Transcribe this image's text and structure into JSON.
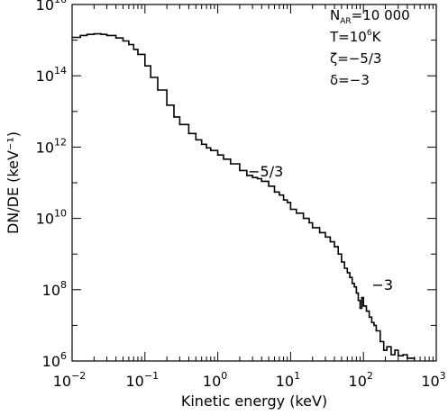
{
  "chart_data": {
    "type": "line",
    "title": "",
    "xlabel": "Kinetic energy (keV)",
    "ylabel": "DN/DE (keV⁻¹)",
    "xscale": "log",
    "yscale": "log",
    "xlim": [
      0.01,
      1000
    ],
    "ylim": [
      1000000.0,
      1e+16
    ],
    "x_ticks": [
      {
        "base": "10",
        "exp": "−2",
        "value": 0.01
      },
      {
        "base": "10",
        "exp": "−1",
        "value": 0.1
      },
      {
        "base": "10",
        "exp": "0",
        "value": 1
      },
      {
        "base": "10",
        "exp": "1",
        "value": 10
      },
      {
        "base": "10",
        "exp": "2",
        "value": 100
      },
      {
        "base": "10",
        "exp": "3",
        "value": 1000
      }
    ],
    "y_ticks": [
      {
        "base": "10",
        "exp": "6",
        "value": 1000000.0
      },
      {
        "base": "10",
        "exp": "8",
        "value": 100000000.0
      },
      {
        "base": "10",
        "exp": "10",
        "value": 10000000000.0
      },
      {
        "base": "10",
        "exp": "12",
        "value": 1000000000000.0
      },
      {
        "base": "10",
        "exp": "14",
        "value": 100000000000000.0
      },
      {
        "base": "10",
        "exp": "16",
        "value": 1e+16
      }
    ],
    "grid": false,
    "legend": {
      "placement": "top-right",
      "lines": [
        {
          "main": "N",
          "sub": "AR",
          "rest": "=10 000"
        },
        {
          "main": "T=10",
          "sup": "6",
          "rest": "K"
        },
        {
          "main": "ζ=−5/3"
        },
        {
          "main": "δ=−3"
        }
      ]
    },
    "annotations": [
      {
        "text": "−5/3",
        "x": 2.6,
        "y": 150000000000.0
      },
      {
        "text": "−3",
        "x": 130,
        "y": 100000000.0
      }
    ],
    "series": [
      {
        "x": [
          0.01,
          0.013,
          0.016,
          0.02,
          0.025,
          0.03,
          0.04,
          0.05,
          0.06,
          0.07,
          0.08,
          0.1,
          0.12,
          0.15,
          0.2,
          0.25,
          0.3,
          0.4,
          0.5,
          0.6,
          0.7,
          0.8,
          1.0,
          1.2,
          1.5,
          2.0,
          2.5,
          3.0,
          3.5,
          4.0,
          5.0,
          6.0,
          7.0,
          8.0,
          9.0,
          10,
          12,
          15,
          18,
          20,
          25,
          30,
          35,
          40,
          45,
          50,
          55,
          60,
          65,
          70,
          75,
          80,
          85,
          90,
          95,
          100,
          110,
          120,
          130,
          140,
          150,
          170,
          190,
          210,
          240,
          270,
          300,
          350,
          400,
          500
        ],
        "y": [
          1200000000000000.0,
          1350000000000000.0,
          1450000000000000.0,
          1500000000000000.0,
          1450000000000000.0,
          1350000000000000.0,
          1150000000000000.0,
          950000000000000.0,
          750000000000000.0,
          550000000000000.0,
          400000000000000.0,
          190000000000000.0,
          90000000000000.0,
          40000000000000.0,
          15000000000000.0,
          7000000000000.0,
          4300000000000.0,
          2400000000000.0,
          1600000000000.0,
          1200000000000.0,
          950000000000.0,
          800000000000.0,
          600000000000.0,
          460000000000.0,
          340000000000.0,
          220000000000.0,
          160000000000.0,
          140000000000.0,
          130000000000.0,
          110000000000.0,
          80000000000.0,
          55000000000.0,
          45000000000.0,
          33000000000.0,
          28000000000.0,
          18000000000.0,
          14000000000.0,
          10000000000.0,
          7500000000.0,
          5500000000.0,
          4000000000.0,
          3000000000.0,
          2200000000.0,
          1600000000.0,
          1000000000.0,
          600000000.0,
          400000000.0,
          300000000.0,
          220000000.0,
          150000000.0,
          120000000.0,
          80000000.0,
          50000000.0,
          30000000.0,
          60000000.0,
          35000000.0,
          25000000.0,
          17000000.0,
          12000000.0,
          10000000.0,
          7000000.0,
          3500000.0,
          2000000.0,
          2500000.0,
          1500000.0,
          2000000.0,
          1400000.0,
          1500000.0,
          1200000.0,
          1100000.0
        ]
      }
    ]
  }
}
